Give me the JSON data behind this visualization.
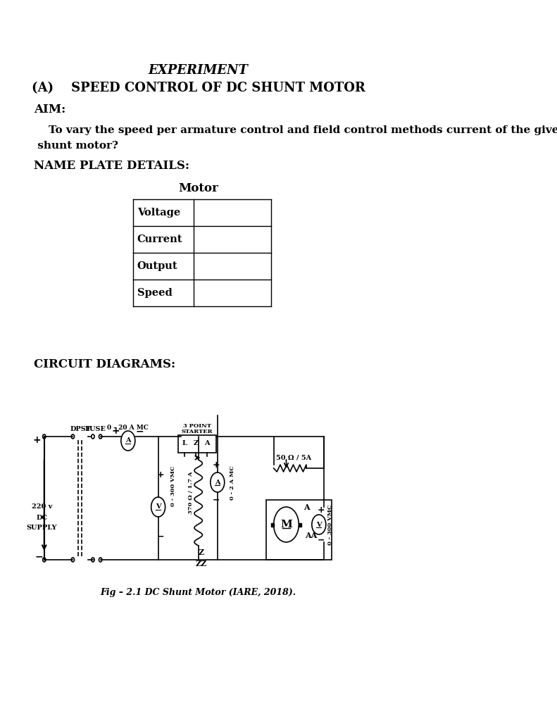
{
  "title_line1": "EXPERIMENT",
  "title_line2": "(A)    SPEED CONTROL OF DC SHUNT MOTOR",
  "aim_label": "AIM:",
  "aim_text": "    To vary the speed per armature control and field control methods current of the given DC\n shunt motor?",
  "nameplate_label": "NAME PLATE DETAILS:",
  "motor_label": "Motor",
  "table_rows": [
    "Voltage",
    "Current",
    "Output",
    "Speed"
  ],
  "circuit_label": "CIRCUIT DIAGRAMS:",
  "fig_caption": "Fig – 2.1 DC Shunt Motor (IARE, 2018).",
  "bg_color": "#ffffff",
  "text_color": "#000000"
}
